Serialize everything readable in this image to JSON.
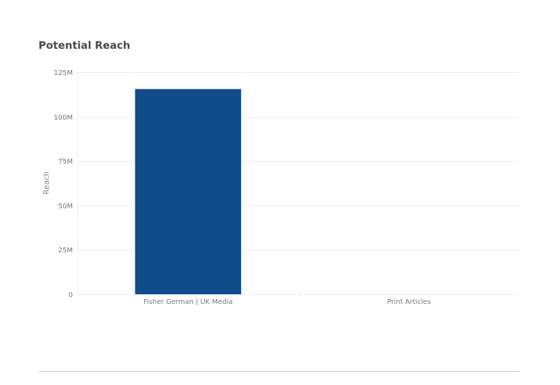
{
  "chart_data": {
    "type": "bar",
    "title": "Potential Reach",
    "ylabel": "Reach",
    "xlabel": "",
    "categories": [
      "Fisher German | UK Media",
      "Print Articles"
    ],
    "values": [
      115500000,
      0
    ],
    "ylim": [
      0,
      125000000
    ],
    "yticks": [
      0,
      25000000,
      50000000,
      75000000,
      100000000,
      125000000
    ],
    "ytick_labels": [
      "0",
      "25M",
      "50M",
      "75M",
      "100M",
      "125M"
    ],
    "grid": true,
    "legend": "none",
    "colors": {
      "bar": "#0f4c89",
      "grid": "#ececec",
      "axis_text": "#777777"
    }
  }
}
